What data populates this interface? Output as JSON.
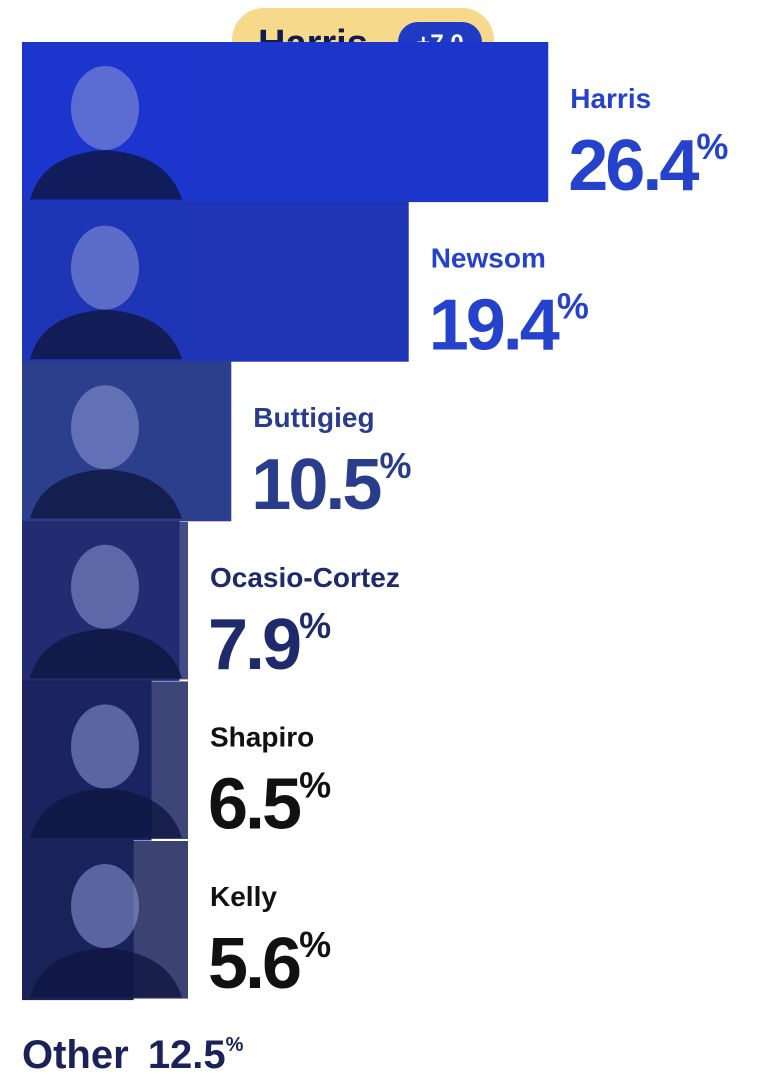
{
  "chart_data": {
    "type": "bar",
    "lead": {
      "name": "Harris",
      "margin": "+7.0"
    },
    "categories": [
      "Harris",
      "Newsom",
      "Buttigieg",
      "Ocasio-Cortez",
      "Shapiro",
      "Kelly"
    ],
    "values": [
      26.4,
      19.4,
      10.5,
      7.9,
      6.5,
      5.6
    ],
    "value_labels": [
      "26.4%",
      "19.4%",
      "10.5%",
      "7.9%",
      "6.5%",
      "5.6%"
    ],
    "colors": [
      "#1c36cc",
      "#1f35b6",
      "#2b3f8c",
      "#222d70",
      "#1b2561",
      "#1a2259"
    ],
    "label_colors": [
      "#2542cc",
      "#2542cc",
      "#2a3d8c",
      "#1f2a6c",
      "#111111",
      "#111111"
    ],
    "xlim": [
      0,
      30
    ],
    "other": {
      "label": "Other",
      "value_label": "12.5%"
    }
  }
}
